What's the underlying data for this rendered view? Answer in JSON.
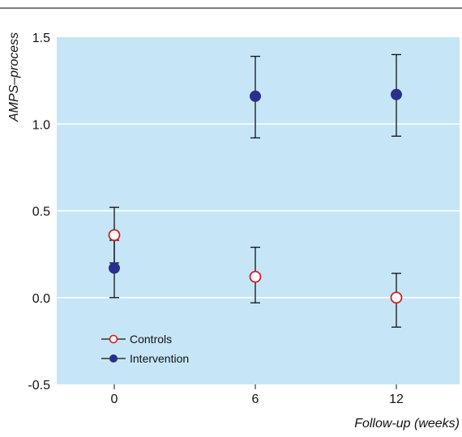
{
  "chart_data": {
    "type": "scatter",
    "title": "",
    "xlabel": "Follow-up (weeks)",
    "ylabel": "AMPS–process",
    "categories": [
      "0",
      "6",
      "12"
    ],
    "ylim": [
      -0.5,
      1.5
    ],
    "yticks": [
      "1.5",
      "1.0",
      "0.5",
      "0.0",
      "-0.5"
    ],
    "ytick_values": [
      1.5,
      1.0,
      0.5,
      0.0,
      -0.5
    ],
    "grid": true,
    "legend_position": "bottom-left",
    "series": [
      {
        "name": "Controls",
        "marker": "open-circle",
        "color": "#d21f1f",
        "values": [
          0.36,
          0.12,
          0.0
        ],
        "lower": [
          0.2,
          -0.03,
          -0.17
        ],
        "upper": [
          0.52,
          0.29,
          0.14
        ]
      },
      {
        "name": "Intervention",
        "marker": "filled-circle",
        "color": "#2a2e8c",
        "values": [
          0.17,
          1.16,
          1.17
        ],
        "lower": [
          0.0,
          0.92,
          0.93
        ],
        "upper": [
          0.33,
          1.39,
          1.4
        ]
      }
    ],
    "colors": {
      "plot_background": "#c6e6f7",
      "gridline": "#ffffff",
      "error_bar": "#111111"
    }
  }
}
